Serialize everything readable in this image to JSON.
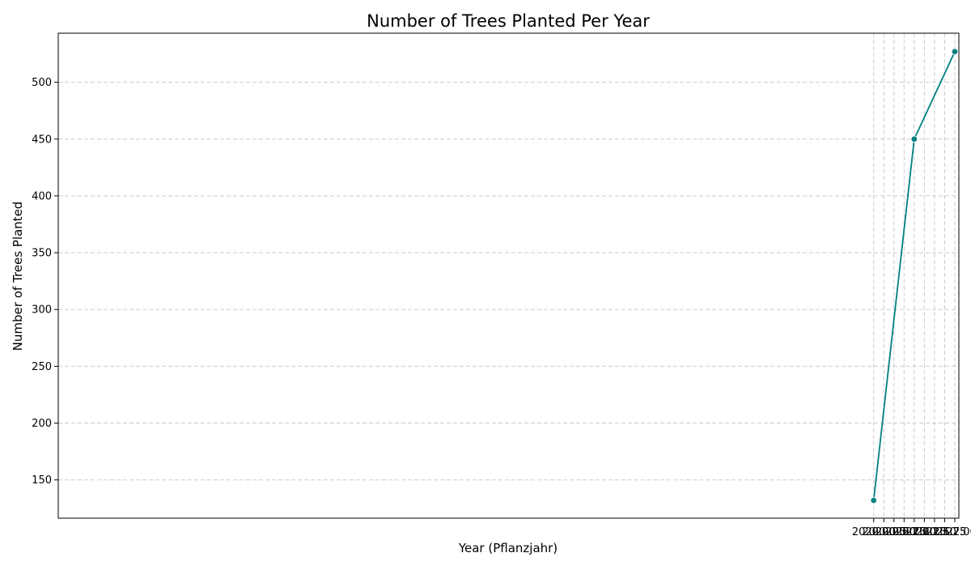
{
  "chart_data": {
    "type": "line",
    "title": "Number of Trees Planted Per Year",
    "xlabel": "Year (Pflanzjahr)",
    "ylabel": "Number of Trees Planted",
    "xlim": [
      1999.9,
      2022.1
    ],
    "ylim": [
      116.3,
      543.2
    ],
    "x_ticks": [
      2020.0,
      2020.25,
      2020.5,
      2020.75,
      2021.0,
      2021.25,
      2021.5,
      2021.75,
      2022.0
    ],
    "x_tick_labels": [
      "2020.00",
      "2020.25",
      "2020.50",
      "2020.75",
      "2021.00",
      "2021.25",
      "2021.50",
      "2021.75",
      "2022.00"
    ],
    "y_ticks": [
      150,
      200,
      250,
      300,
      350,
      400,
      450,
      500
    ],
    "y_tick_labels": [
      "150",
      "200",
      "250",
      "300",
      "350",
      "400",
      "450",
      "500"
    ],
    "grid": true,
    "series": [
      {
        "x": [
          2020,
          2021,
          2022
        ],
        "values": [
          132,
          450,
          527
        ],
        "color": "#008080",
        "marker": "circle"
      }
    ]
  }
}
